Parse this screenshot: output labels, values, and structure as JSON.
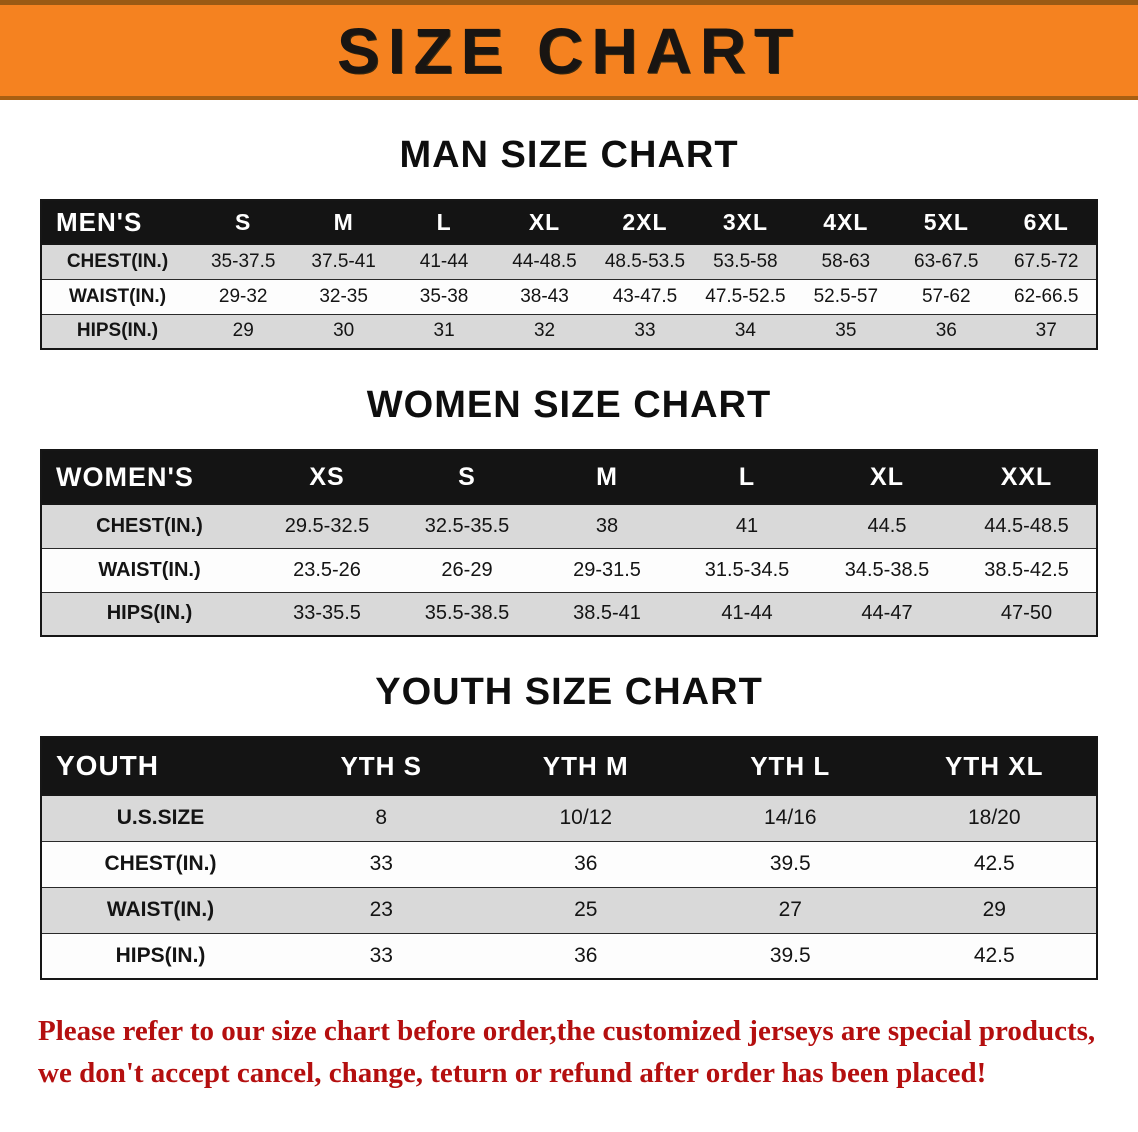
{
  "banner": {
    "title": "SIZE CHART"
  },
  "colors": {
    "banner-orange": "#f58220",
    "header-black": "#141414",
    "row-gray": "#d9d9d9",
    "notice-red": "#b40f0f"
  },
  "sections": [
    {
      "id": "mens",
      "heading": "MAN SIZE CHART",
      "table": {
        "header": [
          "MEN'S",
          "S",
          "M",
          "L",
          "XL",
          "2XL",
          "3XL",
          "4XL",
          "5XL",
          "6XL"
        ],
        "rows": [
          [
            "CHEST(IN.)",
            "35-37.5",
            "37.5-41",
            "41-44",
            "44-48.5",
            "48.5-53.5",
            "53.5-58",
            "58-63",
            "63-67.5",
            "67.5-72"
          ],
          [
            "WAIST(IN.)",
            "29-32",
            "32-35",
            "35-38",
            "38-43",
            "43-47.5",
            "47.5-52.5",
            "52.5-57",
            "57-62",
            "62-66.5"
          ],
          [
            "HIPS(IN.)",
            "29",
            "30",
            "31",
            "32",
            "33",
            "34",
            "35",
            "36",
            "37"
          ]
        ]
      }
    },
    {
      "id": "womens",
      "heading": "WOMEN SIZE CHART",
      "table": {
        "header": [
          "WOMEN'S",
          "XS",
          "S",
          "M",
          "L",
          "XL",
          "XXL"
        ],
        "rows": [
          [
            "CHEST(IN.)",
            "29.5-32.5",
            "32.5-35.5",
            "38",
            "41",
            "44.5",
            "44.5-48.5"
          ],
          [
            "WAIST(IN.)",
            "23.5-26",
            "26-29",
            "29-31.5",
            "31.5-34.5",
            "34.5-38.5",
            "38.5-42.5"
          ],
          [
            "HIPS(IN.)",
            "33-35.5",
            "35.5-38.5",
            "38.5-41",
            "41-44",
            "44-47",
            "47-50"
          ]
        ]
      }
    },
    {
      "id": "youth",
      "heading": "YOUTH SIZE CHART",
      "table": {
        "header": [
          "YOUTH",
          "YTH S",
          "YTH M",
          "YTH L",
          "YTH XL"
        ],
        "rows": [
          [
            "U.S.SIZE",
            "8",
            "10/12",
            "14/16",
            "18/20"
          ],
          [
            "CHEST(IN.)",
            "33",
            "36",
            "39.5",
            "42.5"
          ],
          [
            "WAIST(IN.)",
            "23",
            "25",
            "27",
            "29"
          ],
          [
            "HIPS(IN.)",
            "33",
            "36",
            "39.5",
            "42.5"
          ]
        ]
      }
    }
  ],
  "footer": {
    "line1": "Please refer to our size chart before order,the customized jerseys are special products,",
    "line2": "we don't accept cancel, change, teturn or refund after order has been placed!"
  }
}
